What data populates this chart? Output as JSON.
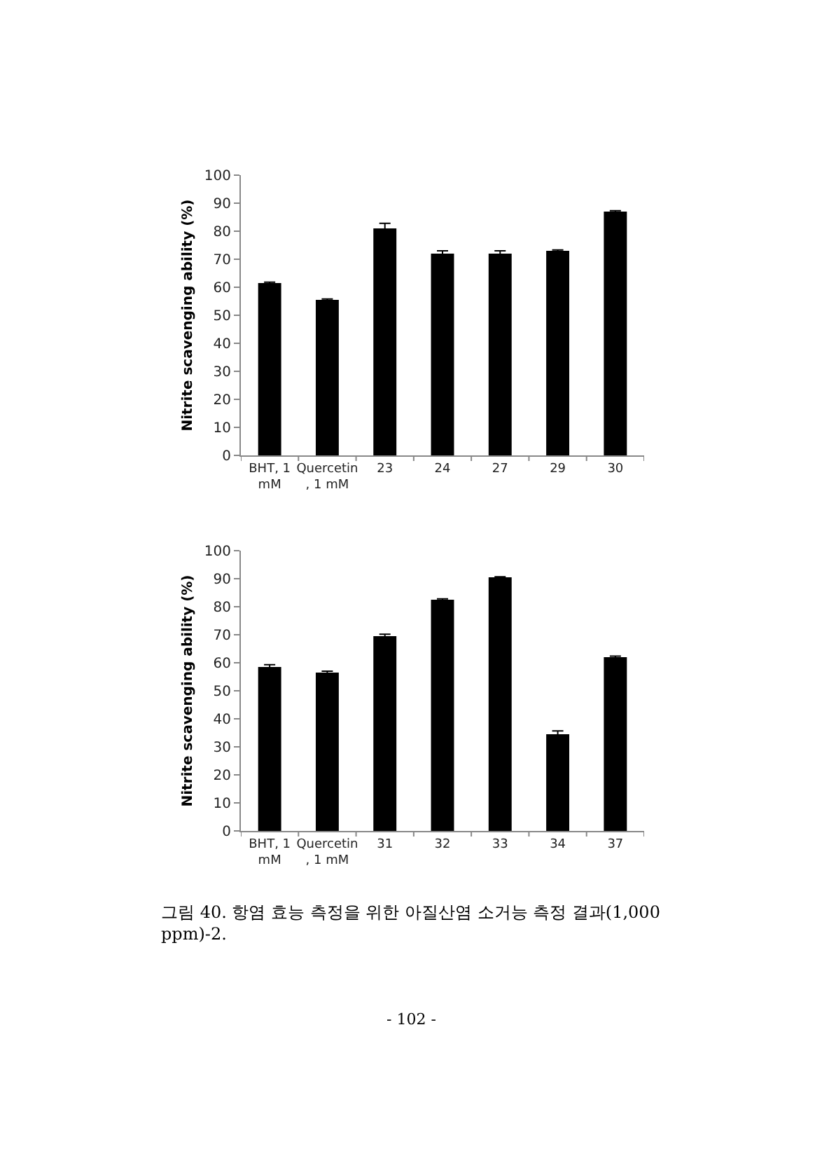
{
  "chart_data": [
    {
      "type": "bar",
      "ylabel": "Nitrite scavenging ability (%)",
      "categories": [
        "BHT, 1\nmM",
        "Quercetin\n, 1 mM",
        "23",
        "24",
        "27",
        "29",
        "30"
      ],
      "values": [
        61.5,
        55.5,
        81,
        72,
        72,
        73,
        87
      ],
      "errors": [
        0.3,
        0.3,
        1.8,
        1,
        1,
        0.3,
        0.3
      ],
      "color": "#000000",
      "ylim": [
        0,
        100
      ],
      "yticks": [
        0,
        10,
        20,
        30,
        40,
        50,
        60,
        70,
        80,
        90,
        100
      ]
    },
    {
      "type": "bar",
      "ylabel": "Nitrite scavenging ability (%)",
      "categories": [
        "BHT, 1\nmM",
        "Quercetin\n, 1 mM",
        "31",
        "32",
        "33",
        "34",
        "37"
      ],
      "values": [
        58.5,
        56.5,
        69.5,
        82.5,
        90.5,
        34.5,
        62
      ],
      "errors": [
        0.8,
        0.5,
        0.7,
        0.3,
        0.2,
        1.2,
        0.4
      ],
      "color": "#000000",
      "ylim": [
        0,
        100
      ],
      "yticks": [
        0,
        10,
        20,
        30,
        40,
        50,
        60,
        70,
        80,
        90,
        100
      ],
      "annotations": [
        "그림 40. 항염 효능 측정을 위한 아질산염 소거능 측정 결과(1,000\nppm)-2.",
        "- 102 -"
      ]
    }
  ]
}
